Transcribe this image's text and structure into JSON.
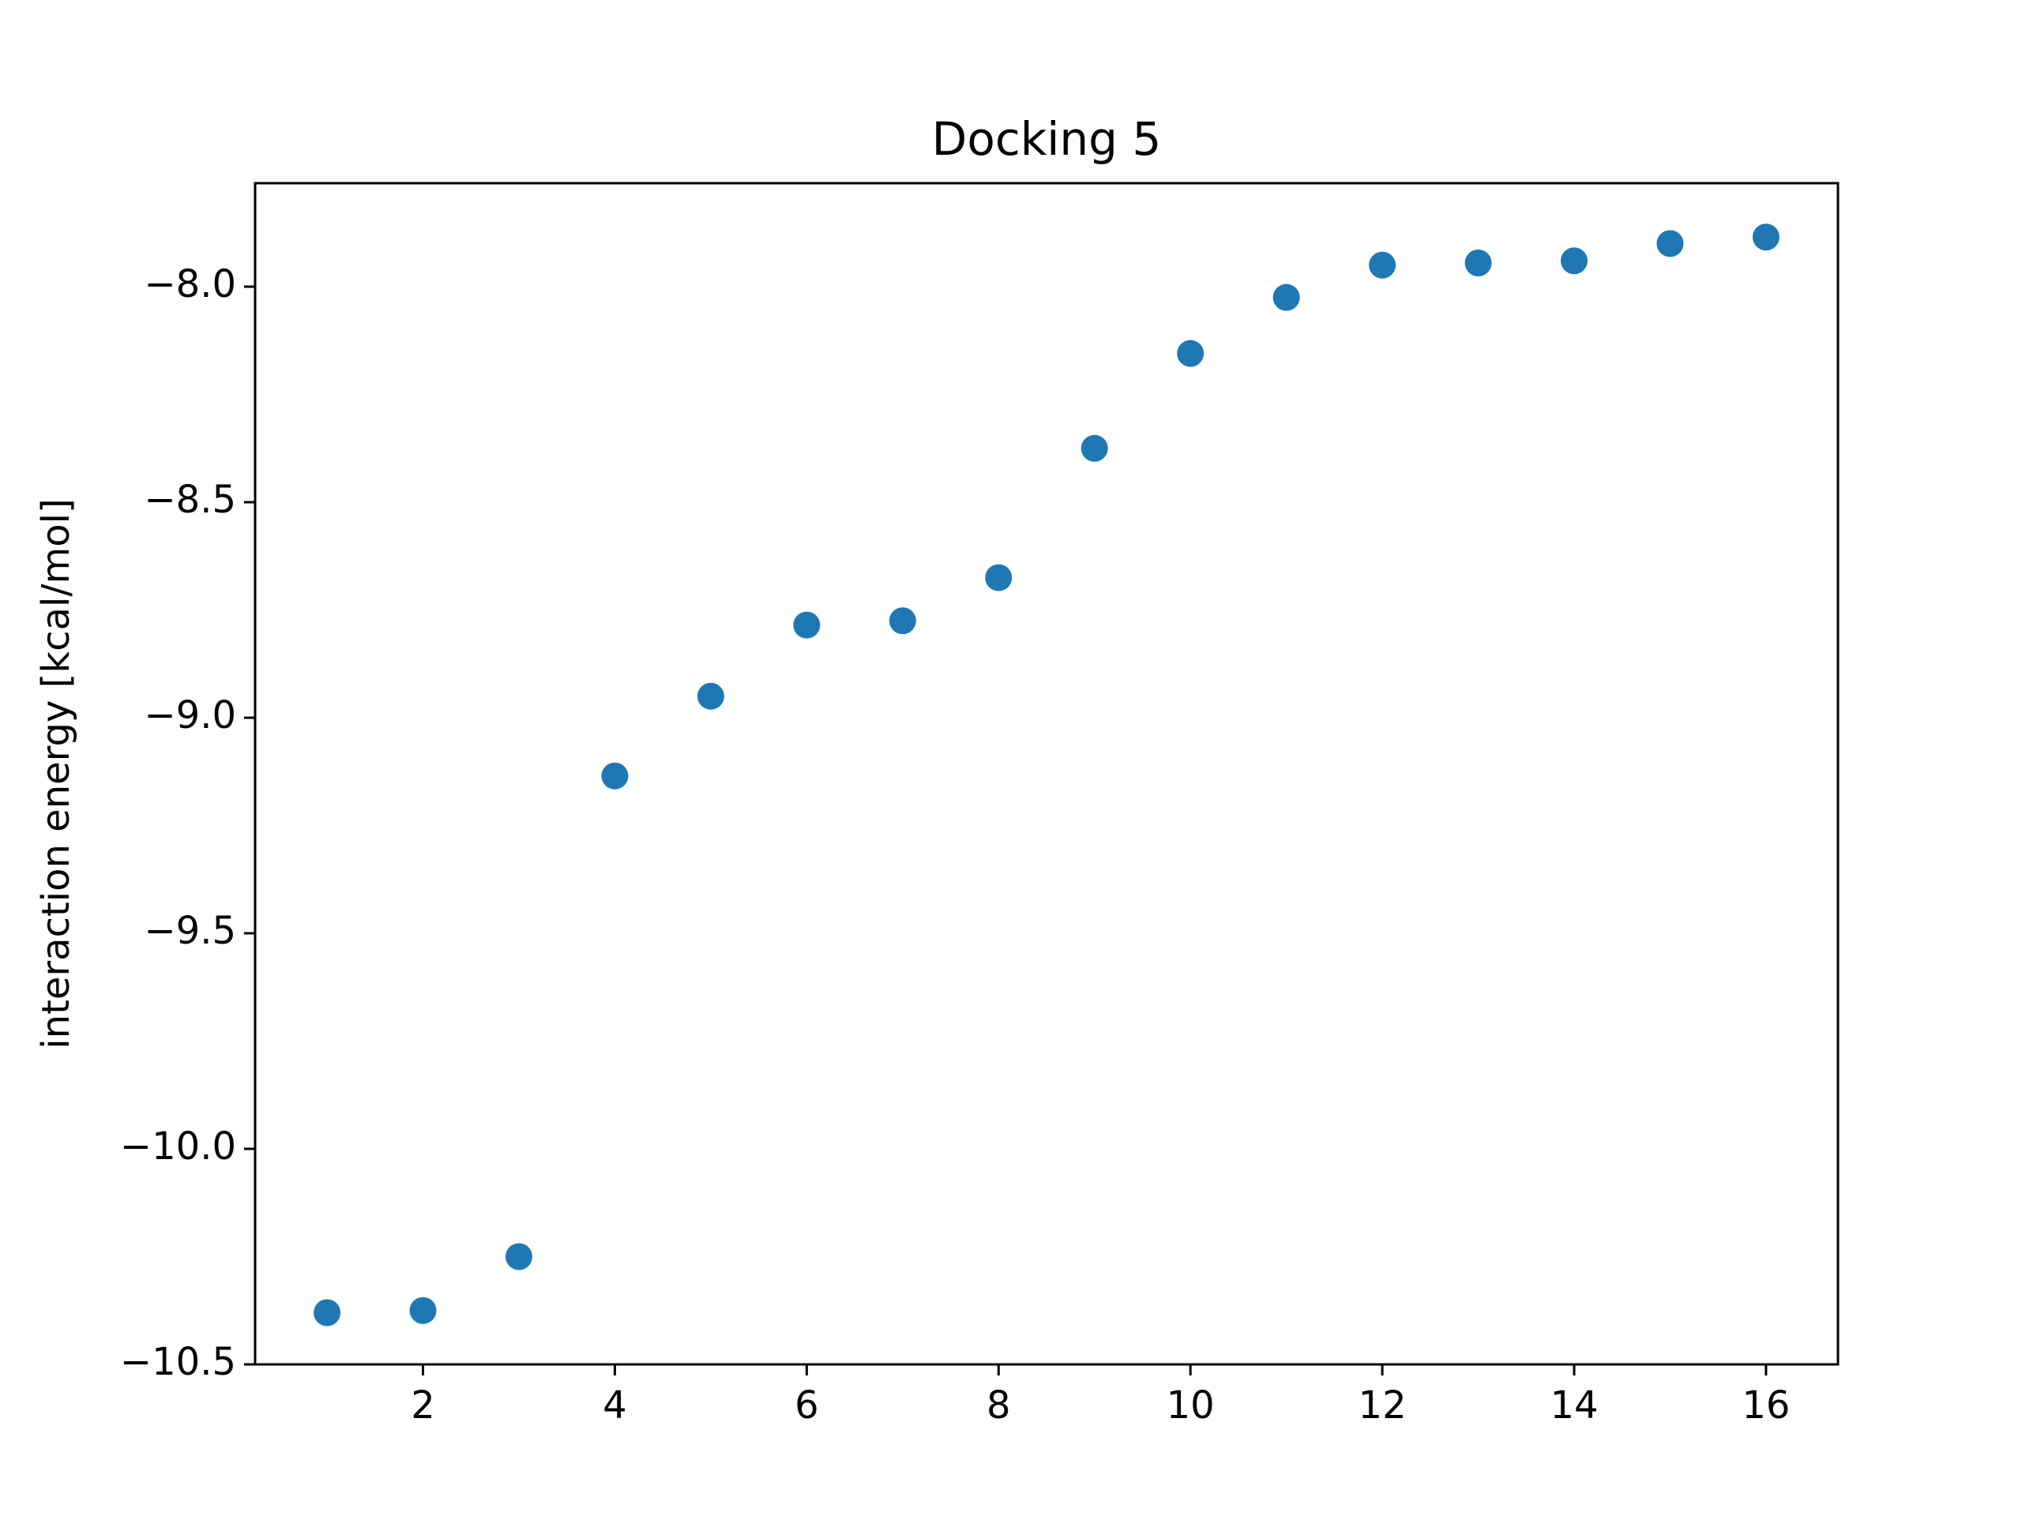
{
  "chart_data": {
    "type": "scatter",
    "title": "Docking 5",
    "xlabel": "",
    "ylabel": "interaction energy [kcal/mol]",
    "xlim": [
      0.25,
      16.75
    ],
    "ylim": [
      -10.5,
      -7.76
    ],
    "x_ticks": [
      2,
      4,
      6,
      8,
      10,
      12,
      14,
      16
    ],
    "x_tick_labels": [
      "2",
      "4",
      "6",
      "8",
      "10",
      "12",
      "14",
      "16"
    ],
    "y_ticks": [
      -10.5,
      -10.0,
      -9.5,
      -9.0,
      -8.5,
      -8.0
    ],
    "y_tick_labels": [
      "−10.5",
      "−10.0",
      "−9.5",
      "−9.0",
      "−8.5",
      "−8.0"
    ],
    "grid": false,
    "marker_color": "#1f77b4",
    "series": [
      {
        "name": "interaction energy",
        "x": [
          1,
          2,
          3,
          4,
          5,
          6,
          7,
          8,
          9,
          10,
          11,
          12,
          13,
          14,
          15,
          16
        ],
        "y": [
          -10.38,
          -10.375,
          -10.25,
          -9.135,
          -8.95,
          -8.785,
          -8.775,
          -8.675,
          -8.375,
          -8.155,
          -8.025,
          -7.95,
          -7.945,
          -7.94,
          -7.9,
          -7.885
        ]
      }
    ]
  }
}
